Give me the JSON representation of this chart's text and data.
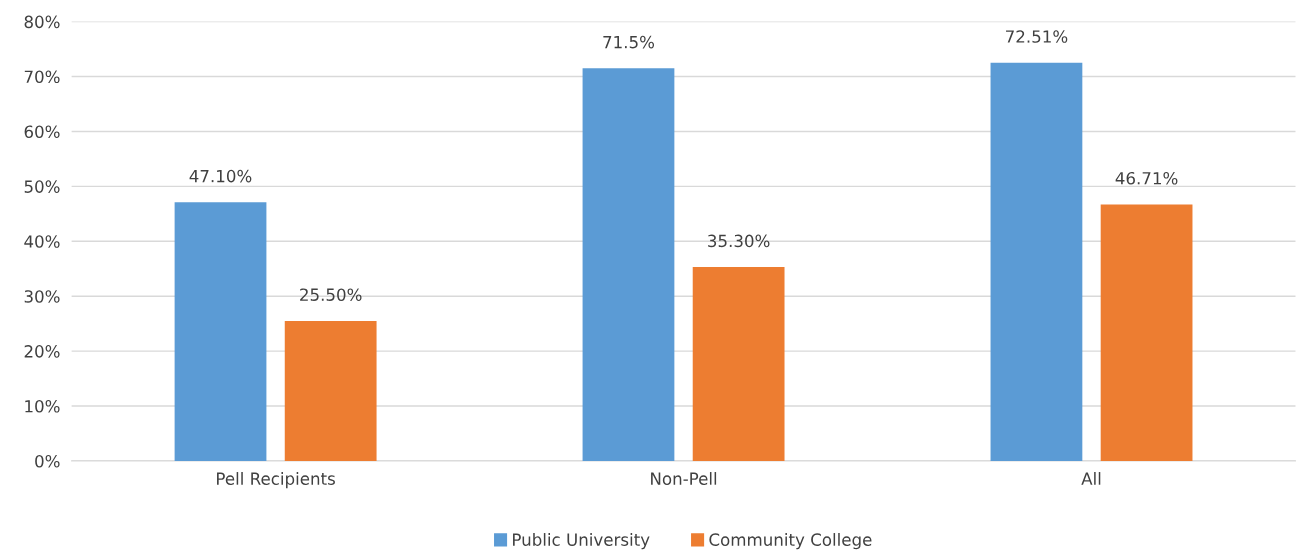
{
  "chart_data": {
    "type": "bar",
    "categories": [
      "Pell Recipients",
      "Non-Pell",
      "All"
    ],
    "series": [
      {
        "name": "Public University",
        "color": "#5b9bd5",
        "values": [
          47.1,
          71.5,
          72.51
        ],
        "value_labels": [
          "47.10%",
          "71.5%",
          "72.51%"
        ]
      },
      {
        "name": "Community College",
        "color": "#ed7d31",
        "values": [
          25.5,
          35.3,
          46.71
        ],
        "value_labels": [
          "25.50%",
          "35.30%",
          "46.71%"
        ]
      }
    ],
    "ylim": [
      0,
      80
    ],
    "yticks": [
      {
        "value": 0,
        "label": "0%"
      },
      {
        "value": 10,
        "label": "10%"
      },
      {
        "value": 20,
        "label": "20%"
      },
      {
        "value": 30,
        "label": "30%"
      },
      {
        "value": 40,
        "label": "40%"
      },
      {
        "value": 50,
        "label": "50%"
      },
      {
        "value": 60,
        "label": "60%"
      },
      {
        "value": 70,
        "label": "70%"
      },
      {
        "value": 80,
        "label": "80%"
      }
    ],
    "grid": "y",
    "legend": "bottom"
  }
}
